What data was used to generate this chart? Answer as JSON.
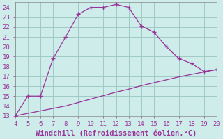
{
  "xlabel": "Windchill (Refroidissement éolien,°C)",
  "xlim": [
    4,
    20
  ],
  "ylim": [
    13,
    24.5
  ],
  "yticks": [
    13,
    14,
    15,
    16,
    17,
    18,
    19,
    20,
    21,
    22,
    23,
    24
  ],
  "xticks": [
    4,
    5,
    6,
    7,
    8,
    9,
    10,
    11,
    12,
    13,
    14,
    15,
    16,
    17,
    18,
    19,
    20
  ],
  "background_color": "#cdecea",
  "line_color": "#993399",
  "grid_color": "#a0c8c4",
  "curve1_x": [
    4,
    5,
    6,
    7,
    8,
    9,
    10,
    11,
    12,
    13,
    14,
    15,
    16,
    17,
    18,
    19,
    20
  ],
  "curve1_y": [
    13.0,
    15.0,
    15.0,
    18.8,
    21.0,
    23.3,
    24.0,
    24.0,
    24.3,
    24.0,
    22.1,
    21.5,
    20.0,
    18.8,
    18.3,
    17.5,
    17.7
  ],
  "curve2_x": [
    4,
    5,
    6,
    7,
    8,
    9,
    10,
    11,
    12,
    13,
    14,
    15,
    16,
    17,
    18,
    19,
    20
  ],
  "curve2_y": [
    13.0,
    13.25,
    13.5,
    13.75,
    14.0,
    14.35,
    14.7,
    15.05,
    15.4,
    15.7,
    16.05,
    16.35,
    16.65,
    16.95,
    17.2,
    17.45,
    17.7
  ],
  "xlabel_color": "#993399",
  "xlabel_fontsize": 7.5,
  "tick_fontsize": 6.5,
  "tick_color": "#993399"
}
